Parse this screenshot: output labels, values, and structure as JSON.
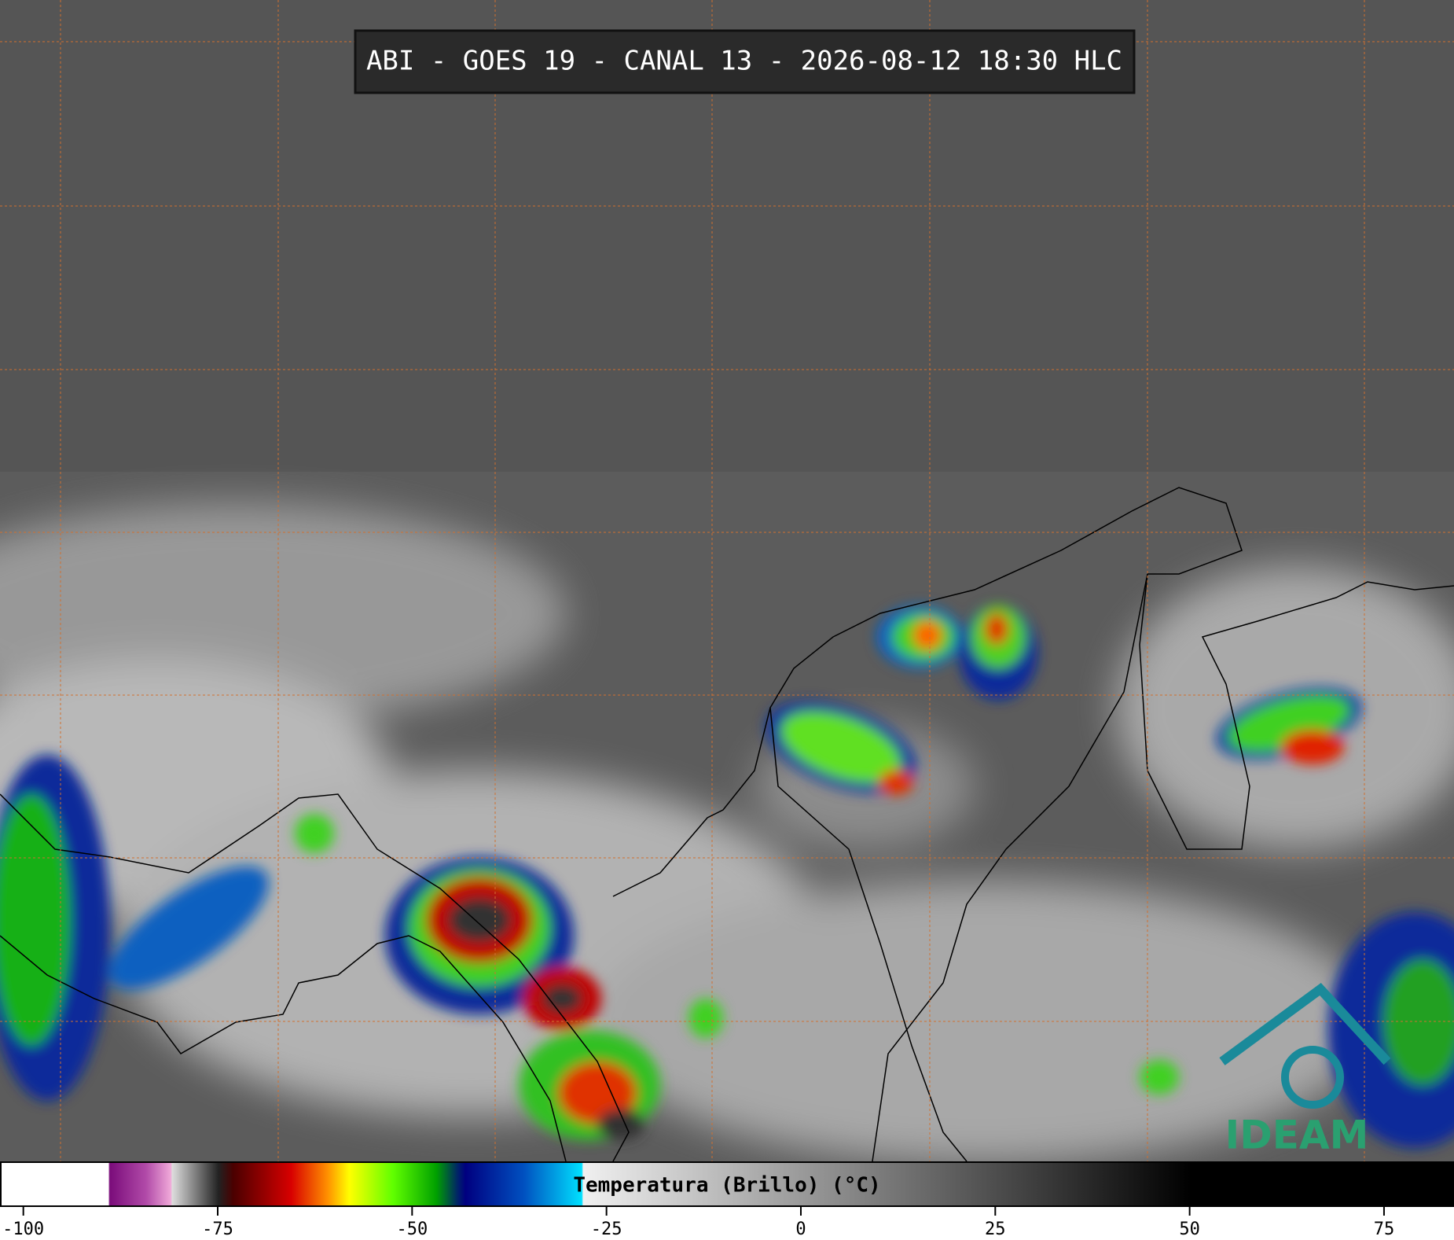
{
  "title": "ABI - GOES 19 - CANAL 13 - 2026-08-12 18:30 HLC",
  "colorbar": {
    "label": "Temperatura (Brillo) (°C)",
    "lim": [
      -103,
      84
    ],
    "ticks": [
      -100,
      -75,
      -50,
      -25,
      0,
      25,
      50,
      75
    ]
  },
  "logo": "IDEAM"
}
